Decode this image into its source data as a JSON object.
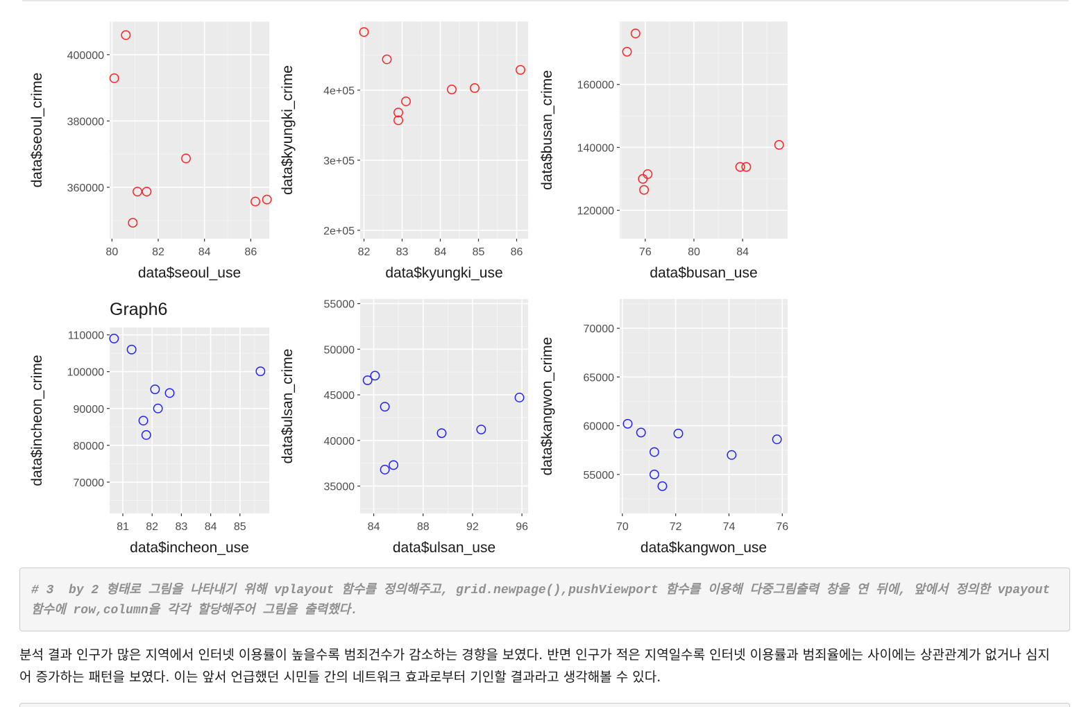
{
  "chart_data": [
    {
      "type": "scatter",
      "title": "",
      "xlabel": "data$seoul_use",
      "ylabel": "data$seoul_crime",
      "xlim": [
        79.9,
        86.8
      ],
      "ylim": [
        344500,
        410000
      ],
      "xticks": [
        80,
        82,
        84,
        86
      ],
      "xticklabels": [
        "80",
        "82",
        "84",
        "86"
      ],
      "yticks": [
        360000,
        380000,
        400000
      ],
      "yticklabels": [
        "360000",
        "380000",
        "400000"
      ],
      "point_color": "#ff2020",
      "points": [
        {
          "x": 80.1,
          "y": 392900
        },
        {
          "x": 80.6,
          "y": 405900
        },
        {
          "x": 80.9,
          "y": 349300
        },
        {
          "x": 81.1,
          "y": 358700
        },
        {
          "x": 81.5,
          "y": 358700
        },
        {
          "x": 83.2,
          "y": 368700
        },
        {
          "x": 86.2,
          "y": 355700
        },
        {
          "x": 86.7,
          "y": 356300
        }
      ]
    },
    {
      "type": "scatter",
      "title": "",
      "xlabel": "data$kyungki_use",
      "ylabel": "data$kyungki_crime",
      "xlim": [
        81.9,
        86.3
      ],
      "ylim": [
        188000,
        498000
      ],
      "xticks": [
        82,
        83,
        84,
        85,
        86
      ],
      "xticklabels": [
        "82",
        "83",
        "84",
        "85",
        "86"
      ],
      "yticks": [
        200000,
        300000,
        400000
      ],
      "yticklabels": [
        "2e+05",
        "3e+05",
        "4e+05"
      ],
      "point_color": "#ff2020",
      "points": [
        {
          "x": 82.0,
          "y": 483000
        },
        {
          "x": 82.6,
          "y": 444000
        },
        {
          "x": 82.9,
          "y": 368000
        },
        {
          "x": 82.9,
          "y": 357000
        },
        {
          "x": 83.1,
          "y": 384000
        },
        {
          "x": 84.3,
          "y": 401000
        },
        {
          "x": 84.9,
          "y": 403000
        },
        {
          "x": 86.1,
          "y": 429000
        }
      ]
    },
    {
      "type": "scatter",
      "title": "",
      "xlabel": "data$busan_use",
      "ylabel": "data$busan_crime",
      "xlim": [
        73.9,
        87.7
      ],
      "ylim": [
        111000,
        180000
      ],
      "xticks": [
        76,
        80,
        84
      ],
      "xticklabels": [
        "76",
        "80",
        "84"
      ],
      "yticks": [
        120000,
        140000,
        160000
      ],
      "yticklabels": [
        "120000",
        "140000",
        "160000"
      ],
      "point_color": "#ff2020",
      "points": [
        {
          "x": 74.5,
          "y": 170400
        },
        {
          "x": 75.2,
          "y": 176200
        },
        {
          "x": 75.8,
          "y": 130000
        },
        {
          "x": 75.9,
          "y": 126500
        },
        {
          "x": 76.2,
          "y": 131500
        },
        {
          "x": 83.8,
          "y": 133800
        },
        {
          "x": 84.3,
          "y": 133800
        },
        {
          "x": 87.0,
          "y": 140800
        }
      ]
    },
    {
      "type": "scatter",
      "title": "Graph6",
      "xlabel": "data$incheon_use",
      "ylabel": "data$incheon_crime",
      "xlim": [
        80.55,
        86.0
      ],
      "ylim": [
        61500,
        112000
      ],
      "xticks": [
        81,
        82,
        83,
        84,
        85
      ],
      "xticklabels": [
        "81",
        "82",
        "83",
        "84",
        "85"
      ],
      "yticks": [
        70000,
        80000,
        90000,
        100000,
        110000
      ],
      "yticklabels": [
        "70000",
        "80000",
        "90000",
        "100000",
        "110000"
      ],
      "point_color": "#2020ff",
      "points": [
        {
          "x": 80.7,
          "y": 109000
        },
        {
          "x": 81.3,
          "y": 106000
        },
        {
          "x": 81.7,
          "y": 86700
        },
        {
          "x": 81.8,
          "y": 82800
        },
        {
          "x": 82.1,
          "y": 95200
        },
        {
          "x": 82.2,
          "y": 90000
        },
        {
          "x": 82.6,
          "y": 94200
        },
        {
          "x": 85.7,
          "y": 100100
        }
      ]
    },
    {
      "type": "scatter",
      "title": "",
      "xlabel": "data$ulsan_use",
      "ylabel": "data$ulsan_crime",
      "xlim": [
        82.9,
        96.5
      ],
      "ylim": [
        32000,
        55500
      ],
      "xticks": [
        84,
        88,
        92,
        96
      ],
      "xticklabels": [
        "84",
        "88",
        "92",
        "96"
      ],
      "yticks": [
        35000,
        40000,
        45000,
        50000,
        55000
      ],
      "yticklabels": [
        "35000",
        "40000",
        "45000",
        "50000",
        "55000"
      ],
      "point_color": "#2020ff",
      "points": [
        {
          "x": 83.5,
          "y": 46600
        },
        {
          "x": 84.1,
          "y": 47100
        },
        {
          "x": 84.9,
          "y": 43700
        },
        {
          "x": 84.9,
          "y": 36800
        },
        {
          "x": 85.6,
          "y": 37300
        },
        {
          "x": 89.5,
          "y": 40800
        },
        {
          "x": 92.7,
          "y": 41200
        },
        {
          "x": 95.8,
          "y": 44700
        }
      ]
    },
    {
      "type": "scatter",
      "title": "",
      "xlabel": "data$kangwon_use",
      "ylabel": "data$kangwon_crime",
      "xlim": [
        69.9,
        76.2
      ],
      "ylim": [
        51000,
        73000
      ],
      "xticks": [
        70,
        72,
        74,
        76
      ],
      "xticklabels": [
        "70",
        "72",
        "74",
        "76"
      ],
      "yticks": [
        55000,
        60000,
        65000,
        70000
      ],
      "yticklabels": [
        "55000",
        "60000",
        "65000",
        "70000"
      ],
      "point_color": "#2020ff",
      "points": [
        {
          "x": 70.2,
          "y": 60200
        },
        {
          "x": 70.7,
          "y": 59300
        },
        {
          "x": 71.2,
          "y": 57300
        },
        {
          "x": 71.2,
          "y": 55000
        },
        {
          "x": 71.5,
          "y": 53800
        },
        {
          "x": 72.1,
          "y": 59200
        },
        {
          "x": 74.1,
          "y": 57000
        },
        {
          "x": 75.8,
          "y": 58600
        }
      ]
    }
  ],
  "code_comment": "# 3  by 2 형태로 그림을 나타내기 위해 vplayout 함수를 정의해주고, grid.newpage(),pushViewport 함수를 이용해 다중그림출력 창을 연 뒤에, 앞에서 정의한 vpayout함수에 row,column을 각각 할당해주어 그림을 출력했다.",
  "analysis_text": "분석 결과 인구가 많은 지역에서 인터넷 이용률이 높을수록 범죄건수가 감소하는 경향을 보였다. 반면 인구가 적은 지역일수록 인터넷 이용률과 범죄율에는 사이에는 상관관계가 없거나 심지어 증가하는 패턴을 보였다. 이는 앞서 언급했던 시민들 간의 네트워크 효과로부터 기인할 결과라고 생각해볼 수 있다."
}
